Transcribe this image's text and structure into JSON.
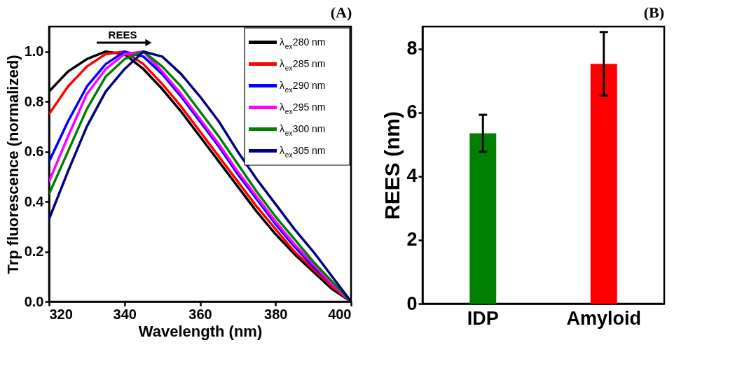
{
  "chart_data": [
    {
      "type": "line",
      "title": "(A)",
      "xlabel": "Wavelength (nm)",
      "ylabel": "Trp fluorescence (normalized)",
      "x": [
        320,
        325,
        330,
        335,
        340,
        345,
        350,
        355,
        360,
        365,
        370,
        375,
        380,
        385,
        390,
        395,
        400
      ],
      "series": [
        {
          "name": "λ$_{ex}$280 nm",
          "color": "#000000",
          "values": [
            0.84,
            0.92,
            0.97,
            1.0,
            0.99,
            0.93,
            0.85,
            0.76,
            0.66,
            0.56,
            0.46,
            0.36,
            0.27,
            0.19,
            0.12,
            0.05,
            0.0
          ]
        },
        {
          "name": "λ$_{ex}$285 nm",
          "color": "#ff0000",
          "values": [
            0.75,
            0.86,
            0.94,
            0.99,
            1.0,
            0.95,
            0.87,
            0.78,
            0.68,
            0.58,
            0.48,
            0.38,
            0.29,
            0.2,
            0.13,
            0.06,
            0.0
          ]
        },
        {
          "name": "λ$_{ex}$290 nm",
          "color": "#0000ff",
          "values": [
            0.56,
            0.72,
            0.86,
            0.95,
            1.0,
            0.98,
            0.91,
            0.82,
            0.72,
            0.62,
            0.51,
            0.41,
            0.31,
            0.22,
            0.14,
            0.07,
            0.0
          ]
        },
        {
          "name": "λ$_{ex}$295 nm",
          "color": "#ff00ff",
          "values": [
            0.48,
            0.66,
            0.83,
            0.93,
            0.99,
            1.0,
            0.92,
            0.83,
            0.73,
            0.63,
            0.52,
            0.42,
            0.32,
            0.23,
            0.15,
            0.07,
            0.0
          ]
        },
        {
          "name": "λ$_{ex}$300 nm",
          "color": "#008000",
          "values": [
            0.43,
            0.6,
            0.77,
            0.9,
            0.97,
            1.0,
            0.94,
            0.86,
            0.76,
            0.66,
            0.55,
            0.44,
            0.34,
            0.25,
            0.16,
            0.08,
            0.0
          ]
        },
        {
          "name": "λ$_{ex}$305 nm",
          "color": "#000080",
          "values": [
            0.33,
            0.52,
            0.7,
            0.84,
            0.93,
            1.0,
            0.98,
            0.91,
            0.82,
            0.72,
            0.6,
            0.49,
            0.39,
            0.29,
            0.2,
            0.1,
            0.0
          ]
        }
      ],
      "xlim": [
        320,
        400
      ],
      "xticks": [
        320,
        340,
        360,
        380,
        400
      ],
      "ylim": [
        0,
        1.1
      ],
      "yticks": [
        {
          "value": 0,
          "label": "0.0"
        },
        {
          "value": 0.2,
          "label": "0.2"
        },
        {
          "value": 0.4,
          "label": "0.4"
        },
        {
          "value": 0.6,
          "label": "0.6"
        },
        {
          "value": 0.8,
          "label": "0.8"
        },
        {
          "value": 1,
          "label": "1.0"
        }
      ],
      "legend": "top right",
      "grid": false,
      "line_style": "solid",
      "marker": "none",
      "annotations": [
        "REES"
      ]
    },
    {
      "type": "bar",
      "title": "(B)",
      "ylabel": "REES (nm)",
      "categories": [
        "IDP",
        "Amyloid"
      ],
      "values": [
        5.35,
        7.53
      ],
      "colors": [
        "#008000",
        "#ff0000"
      ],
      "errors": [
        0.58,
        1.0
      ],
      "ylim": [
        0,
        8.7
      ],
      "yticks": [
        0,
        2,
        4,
        6,
        8
      ],
      "grid": false
    }
  ]
}
